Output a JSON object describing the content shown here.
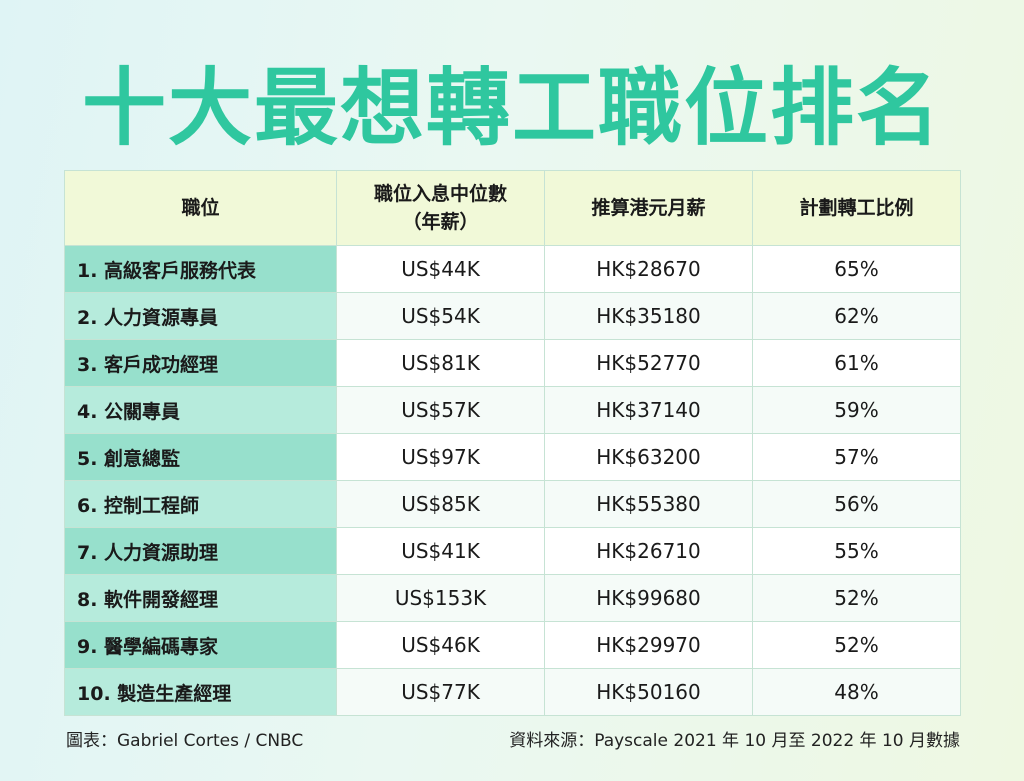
{
  "title": "十大最想轉工職位排名",
  "table": {
    "headers": [
      "職位",
      "職位入息中位數（年薪）",
      "推算港元月薪",
      "計劃轉工比例"
    ],
    "header_lines": {
      "col2_line1": "職位入息中位數",
      "col2_line2": "（年薪）"
    },
    "rows": [
      {
        "job": "1. 高級客戶服務代表",
        "salary_usd": "US$44K",
        "monthly_hkd": "HK$28670",
        "ratio": "65%"
      },
      {
        "job": "2. 人力資源專員",
        "salary_usd": "US$54K",
        "monthly_hkd": "HK$35180",
        "ratio": "62%"
      },
      {
        "job": "3. 客戶成功經理",
        "salary_usd": "US$81K",
        "monthly_hkd": "HK$52770",
        "ratio": "61%"
      },
      {
        "job": "4. 公關專員",
        "salary_usd": "US$57K",
        "monthly_hkd": "HK$37140",
        "ratio": "59%"
      },
      {
        "job": "5. 創意總監",
        "salary_usd": "US$97K",
        "monthly_hkd": "HK$63200",
        "ratio": "57%"
      },
      {
        "job": "6. 控制工程師",
        "salary_usd": "US$85K",
        "monthly_hkd": "HK$55380",
        "ratio": "56%"
      },
      {
        "job": "7. 人力資源助理",
        "salary_usd": "US$41K",
        "monthly_hkd": "HK$26710",
        "ratio": "55%"
      },
      {
        "job": "8. 軟件開發經理",
        "salary_usd": "US$153K",
        "monthly_hkd": "HK$99680",
        "ratio": "52%"
      },
      {
        "job": "9. 醫學編碼專家",
        "salary_usd": "US$46K",
        "monthly_hkd": "HK$29970",
        "ratio": "52%"
      },
      {
        "job": "10. 製造生產經理",
        "salary_usd": "US$77K",
        "monthly_hkd": "HK$50160",
        "ratio": "48%"
      }
    ]
  },
  "footer": {
    "credit": "圖表：Gabriel Cortes / CNBC",
    "source": "資料來源：Payscale 2021 年 10 月至 2022 年 10 月數據"
  },
  "colors": {
    "title": "#2fc79f",
    "header_bg": "#f1f9d8",
    "job_cell_odd": "#97e0cc",
    "job_cell_even": "#b6ebdc"
  }
}
